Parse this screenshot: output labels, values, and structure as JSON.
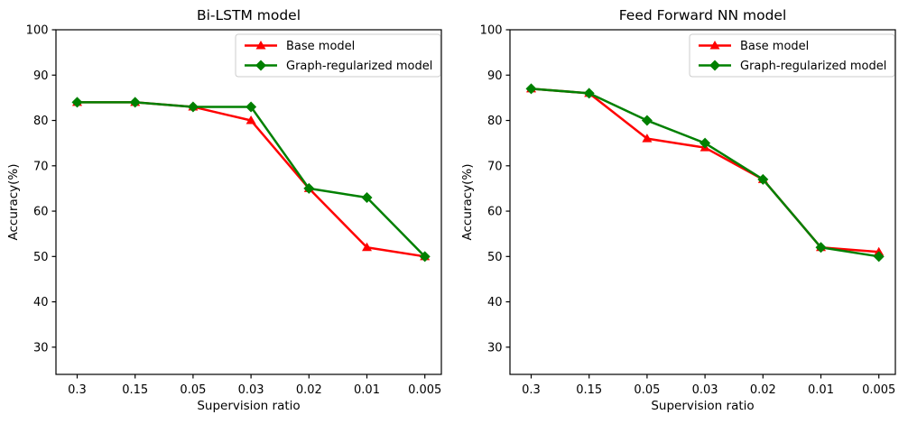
{
  "figure": {
    "background": "#ffffff",
    "axis_color": "#000000",
    "legend_border_color": "#cccccc"
  },
  "chart_data": [
    {
      "type": "line",
      "title": "Bi-LSTM model",
      "xlabel": "Supervision ratio",
      "ylabel": "Accuracy(%)",
      "categories": [
        "0.3",
        "0.15",
        "0.05",
        "0.03",
        "0.02",
        "0.01",
        "0.005"
      ],
      "yticks": [
        100,
        90,
        80,
        70,
        60,
        50,
        40,
        30
      ],
      "ylim": [
        24,
        100
      ],
      "grid": false,
      "legend_position": "upper right",
      "series": [
        {
          "name": "Base model",
          "color": "#ff0000",
          "marker": "triangle",
          "values": [
            84,
            84,
            83,
            80,
            65,
            52,
            50
          ]
        },
        {
          "name": "Graph-regularized model",
          "color": "#008000",
          "marker": "diamond",
          "values": [
            84,
            84,
            83,
            83,
            65,
            63,
            50
          ]
        }
      ]
    },
    {
      "type": "line",
      "title": "Feed Forward NN model",
      "xlabel": "Supervision ratio",
      "ylabel": "Accuracy(%)",
      "categories": [
        "0.3",
        "0.15",
        "0.05",
        "0.03",
        "0.02",
        "0.01",
        "0.005"
      ],
      "yticks": [
        100,
        90,
        80,
        70,
        60,
        50,
        40,
        30
      ],
      "ylim": [
        24,
        100
      ],
      "grid": false,
      "legend_position": "upper right",
      "series": [
        {
          "name": "Base model",
          "color": "#ff0000",
          "marker": "triangle",
          "values": [
            87,
            86,
            76,
            74,
            67,
            52,
            51
          ]
        },
        {
          "name": "Graph-regularized model",
          "color": "#008000",
          "marker": "diamond",
          "values": [
            87,
            86,
            80,
            75,
            67,
            52,
            50
          ]
        }
      ]
    }
  ]
}
